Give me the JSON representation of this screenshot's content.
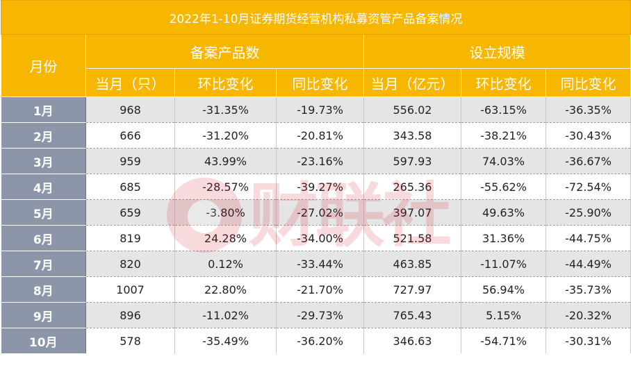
{
  "table": {
    "title": "2022年1-10月证券期货经营机构私募资管产品备案情况",
    "month_header": "月份",
    "group1": "备案产品数",
    "group2": "设立规模",
    "subheaders": [
      "当月（只）",
      "环比变化",
      "同比变化",
      "当月（亿元）",
      "环比变化",
      "同比变化"
    ],
    "rows": [
      {
        "month": "1月",
        "count": "968",
        "count_mom": "-31.35%",
        "count_yoy": "-19.73%",
        "scale": "556.02",
        "scale_mom": "-63.15%",
        "scale_yoy": "-36.35%"
      },
      {
        "month": "2月",
        "count": "666",
        "count_mom": "-31.20%",
        "count_yoy": "-20.81%",
        "scale": "343.58",
        "scale_mom": "-38.21%",
        "scale_yoy": "-30.43%"
      },
      {
        "month": "3月",
        "count": "959",
        "count_mom": "43.99%",
        "count_yoy": "-23.16%",
        "scale": "597.93",
        "scale_mom": "74.03%",
        "scale_yoy": "-36.67%"
      },
      {
        "month": "4月",
        "count": "685",
        "count_mom": "-28.57%",
        "count_yoy": "-39.27%",
        "scale": "265.36",
        "scale_mom": "-55.62%",
        "scale_yoy": "-72.54%"
      },
      {
        "month": "5月",
        "count": "659",
        "count_mom": "-3.80%",
        "count_yoy": "-27.02%",
        "scale": "397.07",
        "scale_mom": "49.63%",
        "scale_yoy": "-25.90%"
      },
      {
        "month": "6月",
        "count": "819",
        "count_mom": "24.28%",
        "count_yoy": "-34.00%",
        "scale": "521.58",
        "scale_mom": "31.36%",
        "scale_yoy": "-44.75%"
      },
      {
        "month": "7月",
        "count": "820",
        "count_mom": "0.12%",
        "count_yoy": "-33.44%",
        "scale": "463.85",
        "scale_mom": "-11.07%",
        "scale_yoy": "-44.49%"
      },
      {
        "month": "8月",
        "count": "1007",
        "count_mom": "22.80%",
        "count_yoy": "-21.70%",
        "scale": "727.97",
        "scale_mom": "56.94%",
        "scale_yoy": "-35.73%"
      },
      {
        "month": "9月",
        "count": "896",
        "count_mom": "-11.02%",
        "count_yoy": "-29.73%",
        "scale": "765.43",
        "scale_mom": "5.15%",
        "scale_yoy": "-20.32%"
      },
      {
        "month": "10月",
        "count": "578",
        "count_mom": "-35.49%",
        "count_yoy": "-36.20%",
        "scale": "346.63",
        "scale_mom": "-54.71%",
        "scale_yoy": "-30.31%"
      }
    ]
  },
  "watermark": {
    "text": "财联社"
  },
  "colors": {
    "header": "#f7b600",
    "month_column": "#8d96a8",
    "row_shade": "#e5e5e5",
    "watermark": "#d81e2a"
  }
}
